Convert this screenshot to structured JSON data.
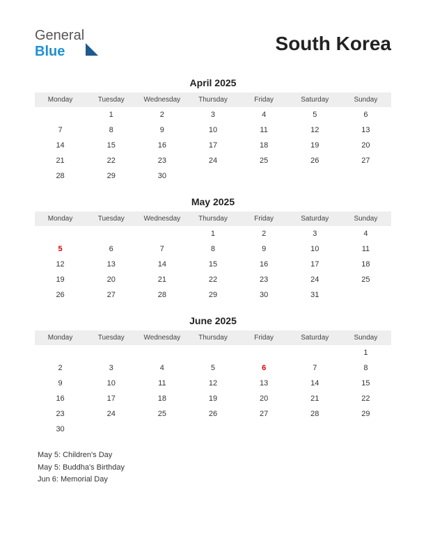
{
  "logo": {
    "general": "General",
    "blue": "Blue"
  },
  "country": "South Korea",
  "day_headers": [
    "Monday",
    "Tuesday",
    "Wednesday",
    "Thursday",
    "Friday",
    "Saturday",
    "Sunday"
  ],
  "colors": {
    "background": "#ffffff",
    "text": "#333333",
    "header_bg": "#eeeeee",
    "holiday": "#d40000",
    "logo_blue": "#1e90d4",
    "logo_dark": "#555555"
  },
  "months": [
    {
      "title": "April 2025",
      "weeks": [
        [
          "",
          "1",
          "2",
          "3",
          "4",
          "5",
          "6"
        ],
        [
          "7",
          "8",
          "9",
          "10",
          "11",
          "12",
          "13"
        ],
        [
          "14",
          "15",
          "16",
          "17",
          "18",
          "19",
          "20"
        ],
        [
          "21",
          "22",
          "23",
          "24",
          "25",
          "26",
          "27"
        ],
        [
          "28",
          "29",
          "30",
          "",
          "",
          "",
          ""
        ]
      ],
      "holidays": []
    },
    {
      "title": "May 2025",
      "weeks": [
        [
          "",
          "",
          "",
          "1",
          "2",
          "3",
          "4"
        ],
        [
          "5",
          "6",
          "7",
          "8",
          "9",
          "10",
          "11"
        ],
        [
          "12",
          "13",
          "14",
          "15",
          "16",
          "17",
          "18"
        ],
        [
          "19",
          "20",
          "21",
          "22",
          "23",
          "24",
          "25"
        ],
        [
          "26",
          "27",
          "28",
          "29",
          "30",
          "31",
          ""
        ]
      ],
      "holidays": [
        {
          "row": 1,
          "col": 0
        }
      ]
    },
    {
      "title": "June 2025",
      "weeks": [
        [
          "",
          "",
          "",
          "",
          "",
          "",
          "1"
        ],
        [
          "2",
          "3",
          "4",
          "5",
          "6",
          "7",
          "8"
        ],
        [
          "9",
          "10",
          "11",
          "12",
          "13",
          "14",
          "15"
        ],
        [
          "16",
          "17",
          "18",
          "19",
          "20",
          "21",
          "22"
        ],
        [
          "23",
          "24",
          "25",
          "26",
          "27",
          "28",
          "29"
        ],
        [
          "30",
          "",
          "",
          "",
          "",
          "",
          ""
        ]
      ],
      "holidays": [
        {
          "row": 1,
          "col": 4
        }
      ]
    }
  ],
  "holiday_list": [
    "May 5: Children's Day",
    " May 5: Buddha's Birthday",
    "Jun 6: Memorial Day"
  ]
}
